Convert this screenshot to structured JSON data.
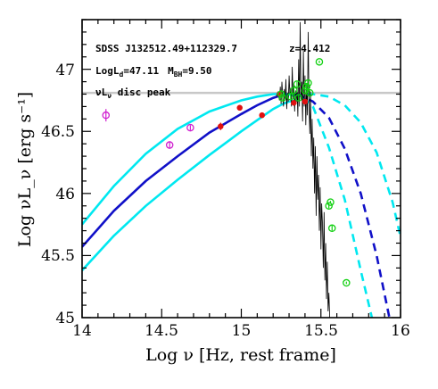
{
  "chart_data": {
    "type": "scatter",
    "xlabel": "Log ν [Hz, rest frame]",
    "ylabel": "Log νL_ν [erg s⁻¹]",
    "xlim": [
      14,
      16
    ],
    "ylim": [
      45,
      47.4
    ],
    "x_ticks": [
      "14",
      "14.5",
      "15",
      "15.5",
      "16"
    ],
    "y_ticks": [
      "45",
      "45.5",
      "46",
      "46.5",
      "47"
    ],
    "annotations": {
      "object_name": "SDSS J132512.49+112329.7",
      "redshift": "z=4.412",
      "logld_prefix": "LogL",
      "logld_sub": "d",
      "logld_value": "=47.11",
      "mbh_prefix": "M",
      "mbh_sub": "BH",
      "mbh_value": "=9.50",
      "peak_label_prefix": "νL",
      "peak_label_sub": "ν",
      "peak_label_suffix": " disc peak"
    },
    "disc_peak_line": {
      "y": 46.81,
      "color": "#c8c8c8"
    },
    "series": [
      {
        "style": "solid-dashed",
        "color": "#1010c8",
        "solid_x": [
          14,
          14.2,
          14.4,
          14.6,
          14.8,
          15.0,
          15.1,
          15.2,
          15.25,
          15.3,
          15.35
        ],
        "solid_y": [
          45.57,
          45.86,
          46.1,
          46.3,
          46.49,
          46.64,
          46.71,
          46.77,
          46.79,
          46.8,
          46.8
        ],
        "dashed_x": [
          15.35,
          15.45,
          15.55,
          15.65,
          15.75,
          15.85,
          15.93
        ],
        "dashed_y": [
          46.8,
          46.74,
          46.61,
          46.36,
          46.0,
          45.5,
          45.0
        ]
      },
      {
        "style": "solid-dashed",
        "color": "#00e8f0",
        "solid_x": [
          14,
          14.2,
          14.4,
          14.6,
          14.8,
          15.0,
          15.1,
          15.2,
          15.28,
          15.33
        ],
        "solid_y": [
          45.75,
          46.06,
          46.32,
          46.52,
          46.66,
          46.75,
          46.78,
          46.8,
          46.8,
          46.79
        ],
        "dashed_x": [
          15.33,
          15.45,
          15.55,
          15.65,
          15.75,
          15.85,
          15.95,
          16.0
        ],
        "dashed_y": [
          46.79,
          46.8,
          46.78,
          46.71,
          46.57,
          46.33,
          45.93,
          45.65
        ]
      },
      {
        "style": "solid-dashed",
        "color": "#00e8f0",
        "solid_x": [
          14,
          14.2,
          14.4,
          14.6,
          14.8,
          15.0,
          15.1,
          15.2,
          15.26,
          15.3
        ],
        "solid_y": [
          45.38,
          45.66,
          45.9,
          46.11,
          46.31,
          46.5,
          46.59,
          46.68,
          46.72,
          46.74
        ],
        "dashed_x": [
          15.3,
          15.4,
          15.45,
          15.55,
          15.65,
          15.75,
          15.82
        ],
        "dashed_y": [
          46.74,
          46.76,
          46.7,
          46.37,
          45.95,
          45.38,
          45.0
        ]
      }
    ],
    "spectrum": {
      "color": "#000000",
      "x": [
        15.22,
        15.23,
        15.24,
        15.245,
        15.25,
        15.255,
        15.26,
        15.265,
        15.27,
        15.275,
        15.28,
        15.285,
        15.29,
        15.295,
        15.3,
        15.305,
        15.31,
        15.315,
        15.32,
        15.325,
        15.33,
        15.335,
        15.34,
        15.345,
        15.35,
        15.355,
        15.36,
        15.365,
        15.37,
        15.375,
        15.38,
        15.385,
        15.39,
        15.395,
        15.4,
        15.405,
        15.41,
        15.415,
        15.42,
        15.425,
        15.43,
        15.435,
        15.44,
        15.445,
        15.45,
        15.455,
        15.46,
        15.465,
        15.47,
        15.475,
        15.48,
        15.485,
        15.49,
        15.495,
        15.5,
        15.505,
        15.51,
        15.515,
        15.52,
        15.525,
        15.53,
        15.535,
        15.54,
        15.545,
        15.55,
        15.555,
        15.56
      ],
      "y": [
        46.78,
        46.82,
        46.75,
        46.86,
        46.72,
        46.9,
        46.79,
        46.7,
        46.84,
        46.76,
        46.92,
        46.68,
        46.81,
        46.74,
        46.95,
        46.8,
        46.85,
        46.7,
        47.02,
        46.77,
        46.88,
        46.66,
        46.83,
        46.73,
        46.86,
        46.62,
        47.08,
        46.7,
        47.38,
        46.76,
        46.9,
        46.58,
        47.15,
        46.7,
        46.95,
        46.55,
        46.88,
        46.63,
        47.3,
        46.72,
        46.48,
        46.82,
        46.3,
        46.6,
        46.2,
        46.45,
        46.0,
        46.38,
        45.82,
        46.3,
        45.95,
        46.15,
        45.7,
        46.05,
        45.55,
        45.92,
        45.75,
        45.4,
        45.85,
        45.3,
        45.6,
        45.15,
        45.45,
        45.05,
        45.2,
        45.0,
        45.0
      ]
    },
    "points": [
      {
        "group": "magenta",
        "color": "#d020d0",
        "marker": "open-circle",
        "x": [
          14.15,
          14.55,
          14.68
        ],
        "y": [
          46.63,
          46.39,
          46.53
        ],
        "yerr": [
          0.05,
          0.03,
          0.02
        ]
      },
      {
        "group": "red",
        "color": "#e01010",
        "marker": "filled-circle",
        "x": [
          14.87,
          14.99,
          15.13,
          15.24,
          15.33,
          15.4
        ],
        "y": [
          46.54,
          46.69,
          46.63,
          46.8,
          46.73,
          46.74
        ],
        "yerr": [
          0.03,
          0.02,
          0.02,
          0.02,
          0.02,
          0.02
        ]
      },
      {
        "group": "green",
        "color": "#10d010",
        "marker": "open-circle",
        "x": [
          15.25,
          15.26,
          15.31,
          15.33,
          15.35,
          15.36,
          15.4,
          15.41,
          15.42,
          15.43,
          15.49,
          15.55,
          15.56,
          15.57,
          15.66
        ],
        "y": [
          46.8,
          46.77,
          46.78,
          46.83,
          46.88,
          46.77,
          46.83,
          46.86,
          46.89,
          46.81,
          47.06,
          45.9,
          45.93,
          45.72,
          45.28
        ],
        "yerr": [
          0.02,
          0.02,
          0.02,
          0.02,
          0.02,
          0.02,
          0.02,
          0.03,
          0.02,
          0.02,
          0.01,
          0.02,
          0.01,
          0.02,
          0.01
        ]
      }
    ]
  }
}
